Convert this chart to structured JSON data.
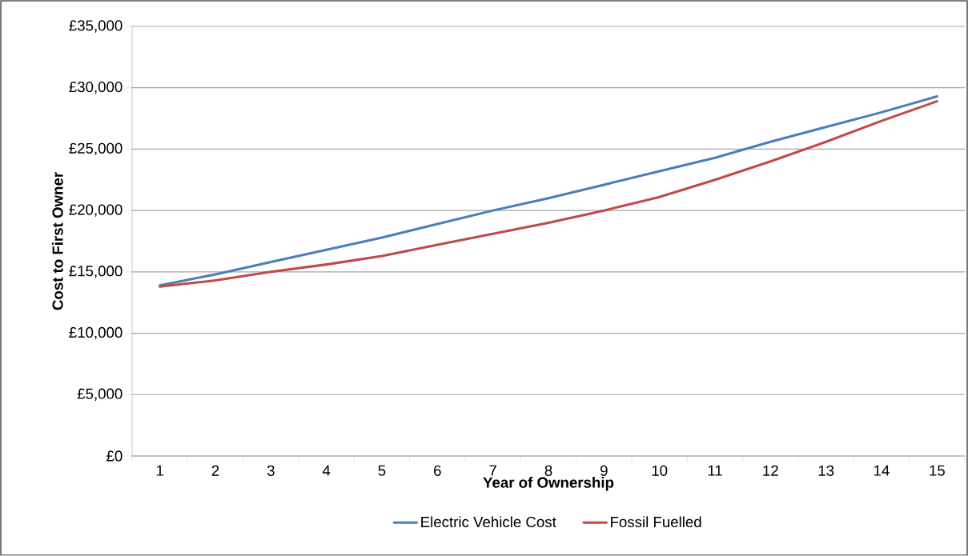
{
  "chart_data": {
    "type": "line",
    "xlabel": "Year of Ownership",
    "ylabel": "Cost to First Owner",
    "categories": [
      "1",
      "2",
      "3",
      "4",
      "5",
      "6",
      "7",
      "8",
      "9",
      "10",
      "11",
      "12",
      "13",
      "14",
      "15"
    ],
    "series": [
      {
        "name": "Electric Vehicle Cost",
        "color": "#4a7ebb",
        "values": [
          13900,
          14800,
          15800,
          16800,
          17800,
          18900,
          20000,
          21000,
          22100,
          23200,
          24300,
          25600,
          26800,
          28000,
          29300
        ]
      },
      {
        "name": "Fossil Fuelled",
        "color": "#be4b48",
        "values": [
          13800,
          14300,
          15000,
          15600,
          16300,
          17200,
          18100,
          19000,
          20000,
          21100,
          22500,
          24000,
          25600,
          27300,
          28900
        ]
      }
    ],
    "ylim": [
      0,
      35000
    ],
    "yticks": [
      {
        "value": 0,
        "label": "£0"
      },
      {
        "value": 5000,
        "label": "£5,000"
      },
      {
        "value": 10000,
        "label": "£10,000"
      },
      {
        "value": 15000,
        "label": "£15,000"
      },
      {
        "value": 20000,
        "label": "£20,000"
      },
      {
        "value": 25000,
        "label": "£25,000"
      },
      {
        "value": 30000,
        "label": "£30,000"
      },
      {
        "value": 35000,
        "label": "£35,000"
      }
    ],
    "grid": "y",
    "legend": "bottom",
    "marker": "none",
    "line_style": "solid"
  }
}
